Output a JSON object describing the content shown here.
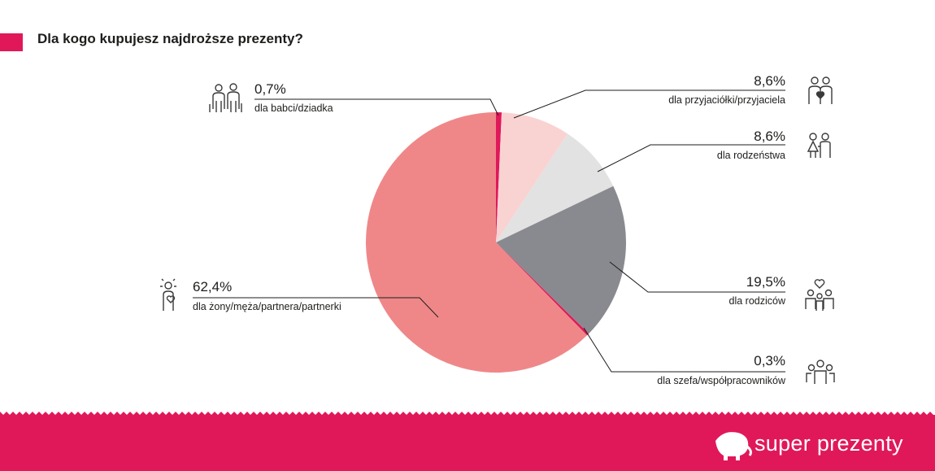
{
  "header": {
    "title": "Dla kogo kupujesz najdroższe prezenty?"
  },
  "colors": {
    "accent": "#e0185a",
    "wife": "#ef8789",
    "parents": "#898a8f",
    "siblings": "#e2e2e2",
    "friends": "#f9d3d2",
    "small_slices": "#e0185a"
  },
  "footer": {
    "brand": "super prezenty",
    "logo_icon": "elephant-icon"
  },
  "chart_data": {
    "type": "pie",
    "title": "Dla kogo kupujesz najdroższe prezenty?",
    "slices": [
      {
        "label": "dla babci/dziadka",
        "value": 0.7,
        "value_label": "0,7%",
        "color": "#e0185a",
        "icon": "grandparents-icon"
      },
      {
        "label": "dla przyjaciółki/przyjaciela",
        "value": 8.6,
        "value_label": "8,6%",
        "color": "#f9d3d2",
        "icon": "friends-icon"
      },
      {
        "label": "dla rodzeństwa",
        "value": 8.6,
        "value_label": "8,6%",
        "color": "#e2e2e2",
        "icon": "siblings-icon"
      },
      {
        "label": "dla rodziców",
        "value": 19.5,
        "value_label": "19,5%",
        "color": "#898a8f",
        "icon": "parents-icon"
      },
      {
        "label": "dla szefa/współpracowników",
        "value": 0.3,
        "value_label": "0,3%",
        "color": "#e0185a",
        "icon": "coworkers-icon"
      },
      {
        "label": "dla żony/męża/partnera/partnerki",
        "value": 62.4,
        "value_label": "62,4%",
        "color": "#ef8789",
        "icon": "partner-icon"
      }
    ]
  }
}
